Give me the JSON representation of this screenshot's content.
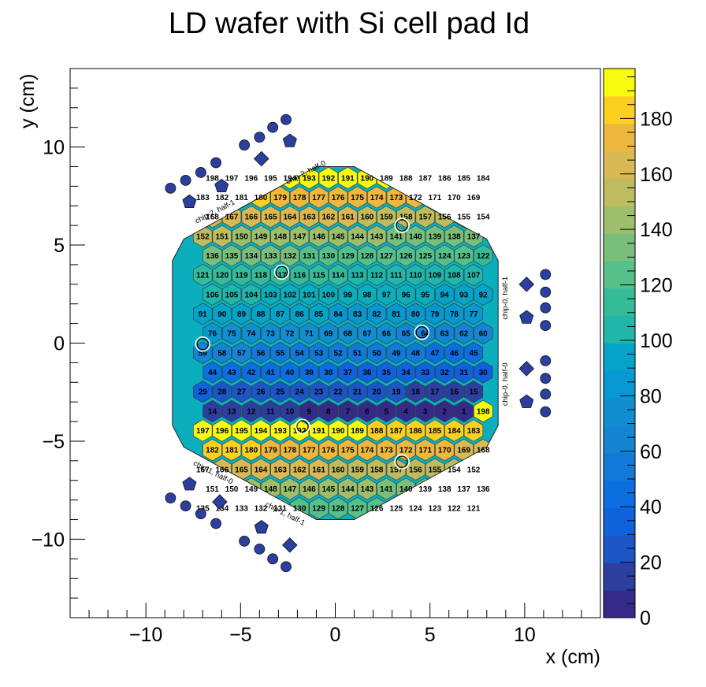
{
  "chart_data": {
    "type": "heatmap",
    "title": "LD wafer with Si cell pad Id",
    "xlabel": "x (cm)",
    "ylabel": "y (cm)",
    "xlim": [
      -14,
      14
    ],
    "ylim": [
      -14,
      14
    ],
    "xticks": [
      -10,
      -5,
      0,
      5,
      10
    ],
    "xtick_labels": [
      "−10",
      "−5",
      "0",
      "5",
      "10"
    ],
    "yticks": [
      -10,
      -5,
      0,
      5,
      10
    ],
    "ytick_labels": [
      "−10",
      "−5",
      "0",
      "5",
      "10"
    ],
    "zlim": [
      0,
      198
    ],
    "zticks": [
      0,
      20,
      40,
      60,
      80,
      100,
      120,
      140,
      160,
      180
    ],
    "colorbar_levels": 20,
    "colorbar_palette": [
      "#352a87",
      "#2c3e9e",
      "#1b55c6",
      "#0f62dc",
      "#0b6fdf",
      "#1179d7",
      "#1584d2",
      "#118ed0",
      "#0798d1",
      "#05a3c9",
      "#0baebc",
      "#20b6aa",
      "#36bb99",
      "#55c08a",
      "#79bf7b",
      "#9dbf6c",
      "#bfbc5f",
      "#d9b953",
      "#eeb73e",
      "#fbd020",
      "#f9fb0e"
    ],
    "row_centers_y": [
      -8.42,
      -7.43,
      -6.44,
      -5.45,
      -4.46,
      -3.47,
      -2.48,
      -1.49,
      -0.5,
      0.5,
      1.49,
      2.48,
      3.47,
      4.46,
      5.45,
      6.44,
      7.43,
      8.42
    ],
    "col_centers_x": [
      -7.0,
      -5.98,
      -4.95,
      -3.93,
      -2.91,
      -1.89,
      -0.87,
      0.15,
      1.17,
      2.19,
      3.22,
      4.24,
      5.26,
      6.28,
      7.3
    ],
    "hexagon_vertices": [
      [
        -1.0,
        9.0
      ],
      [
        1.0,
        9.0
      ],
      [
        8.0,
        5.3
      ],
      [
        8.6,
        4.2
      ],
      [
        8.6,
        -4.2
      ],
      [
        8.0,
        -5.3
      ],
      [
        1.0,
        -9.0
      ],
      [
        -1.0,
        -9.0
      ],
      [
        -8.0,
        -5.3
      ],
      [
        -8.6,
        -4.2
      ],
      [
        -8.6,
        4.2
      ],
      [
        -8.0,
        5.3
      ]
    ],
    "pad_ids_rows": [
      [
        8
      ],
      [
        18,
        17,
        7
      ],
      [
        28,
        27,
        16,
        6
      ],
      [
        39,
        38,
        26,
        15,
        5
      ],
      [
        51,
        50,
        37,
        25,
        14,
        4
      ],
      [
        65,
        64,
        49,
        36,
        24,
        13,
        3
      ],
      [
        80,
        79,
        63,
        48,
        35,
        23,
        12,
        2
      ],
      [
        95,
        94,
        78,
        62,
        47,
        34,
        22,
        11,
        1
      ],
      [
        111,
        110,
        93,
        77,
        60,
        46,
        33,
        21,
        10,
        9
      ],
      [
        126,
        125,
        109,
        92,
        76,
        59,
        45,
        32,
        20,
        19
      ],
      [
        140,
        139,
        124,
        108,
        91,
        75,
        58,
        44,
        31,
        30,
        29
      ],
      [
        155,
        154,
        138,
        123,
        107,
        90,
        74,
        57,
        43,
        42,
        41,
        40
      ],
      [
        168,
        167,
        152,
        137,
        122,
        106,
        89,
        73,
        56,
        55,
        54,
        53,
        52
      ],
      [
        179,
        178,
        166,
        151,
        136,
        121,
        105,
        88,
        72,
        71,
        69,
        68,
        67,
        66
      ],
      [
        189,
        188,
        177,
        165,
        150,
        135,
        120,
        104,
        87,
        86,
        85,
        84,
        83,
        82,
        81
      ],
      [
        198,
        197,
        187,
        176,
        164,
        149,
        134,
        119,
        103,
        102,
        101,
        100,
        99,
        98,
        97,
        96
      ],
      [
        196,
        186,
        175,
        163,
        148,
        133,
        118,
        117,
        116,
        115,
        114,
        113,
        112
      ],
      [
        195,
        185,
        174,
        162,
        147,
        132,
        131,
        130,
        129,
        128,
        127
      ],
      [
        194,
        184,
        173,
        161,
        146,
        145,
        144,
        143,
        141
      ],
      [
        193,
        183,
        172,
        160,
        159,
        158,
        157,
        156
      ],
      [
        192,
        182,
        171,
        170,
        169
      ],
      [
        191,
        181,
        180
      ],
      [
        190
      ]
    ],
    "calibration_pads": [
      {
        "id": "154",
        "x": -7.0,
        "y": -0.05
      },
      {
        "id": "162",
        "x": -2.83,
        "y": 3.62
      },
      {
        "id": "143",
        "x": 3.52,
        "y": 6.0
      },
      {
        "id": "69",
        "x": 4.57,
        "y": 0.55
      },
      {
        "id": "67",
        "x": -1.73,
        "y": -4.25
      },
      {
        "id": "14",
        "x": 3.52,
        "y": -6.05
      }
    ],
    "group_labels": [
      {
        "text": "chip-2, half-0",
        "x": -1.5,
        "y": 8.6,
        "rotate": -27
      },
      {
        "text": "chip-2, half-1",
        "x": -6.3,
        "y": 6.6,
        "rotate": -27
      },
      {
        "text": "chip-0, half-1",
        "x": 9.1,
        "y": 2.3,
        "rotate": -90
      },
      {
        "text": "chip-0, half-0",
        "x": 9.1,
        "y": -2.1,
        "rotate": -90
      },
      {
        "text": "chip-1, half-0",
        "x": -6.5,
        "y": -6.7,
        "rotate": 27
      },
      {
        "text": "chip-1, half-1",
        "x": -2.7,
        "y": -8.8,
        "rotate": 27
      }
    ],
    "marker_color": "#2a3f9e"
  }
}
